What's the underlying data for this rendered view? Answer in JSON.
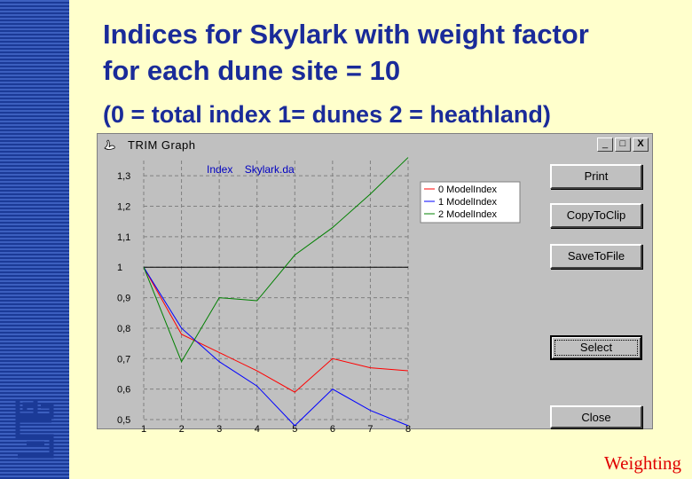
{
  "slide": {
    "title_line1": "Indices for Skylark with weight factor",
    "title_line2": "for each dune site = 10",
    "subtitle": "(0 = total index 1= dunes 2 = heathland)",
    "footer": "Weighting",
    "logo_text": "cbs"
  },
  "window": {
    "title": "TRIM Graph",
    "minimize": "_",
    "maximize": "□",
    "close": "X",
    "buttons": [
      "Print",
      "CopyToClip",
      "SaveToFile",
      "Select",
      "Close"
    ]
  },
  "chart_data": {
    "type": "line",
    "title": "Index    Skylark.da",
    "x": [
      1,
      2,
      3,
      4,
      5,
      6,
      7,
      8
    ],
    "ylim": [
      0.5,
      1.35
    ],
    "yticks": [
      0.5,
      0.6,
      0.7,
      0.8,
      0.9,
      1,
      1.1,
      1.2,
      1.3
    ],
    "ytick_labels": [
      "0,5",
      "0,6",
      "0,7",
      "0,8",
      "0,9",
      "1",
      "1,1",
      "1,2",
      "1,3"
    ],
    "xtick_labels": [
      "1",
      "2",
      "3",
      "4",
      "5",
      "6",
      "7",
      "8"
    ],
    "reference_line": 1,
    "grid": true,
    "legend_position": "top-right",
    "series": [
      {
        "name": "0 ModelIndex",
        "color": "#ff0000",
        "values": [
          1.0,
          0.78,
          0.72,
          0.66,
          0.59,
          0.7,
          0.67,
          0.66
        ]
      },
      {
        "name": "1 ModelIndex",
        "color": "#0000ff",
        "values": [
          1.0,
          0.8,
          0.69,
          0.61,
          0.48,
          0.6,
          0.53,
          0.48
        ]
      },
      {
        "name": "2 ModelIndex",
        "color": "#008000",
        "values": [
          1.0,
          0.69,
          0.9,
          0.89,
          1.04,
          1.13,
          1.24,
          1.36
        ]
      }
    ]
  }
}
